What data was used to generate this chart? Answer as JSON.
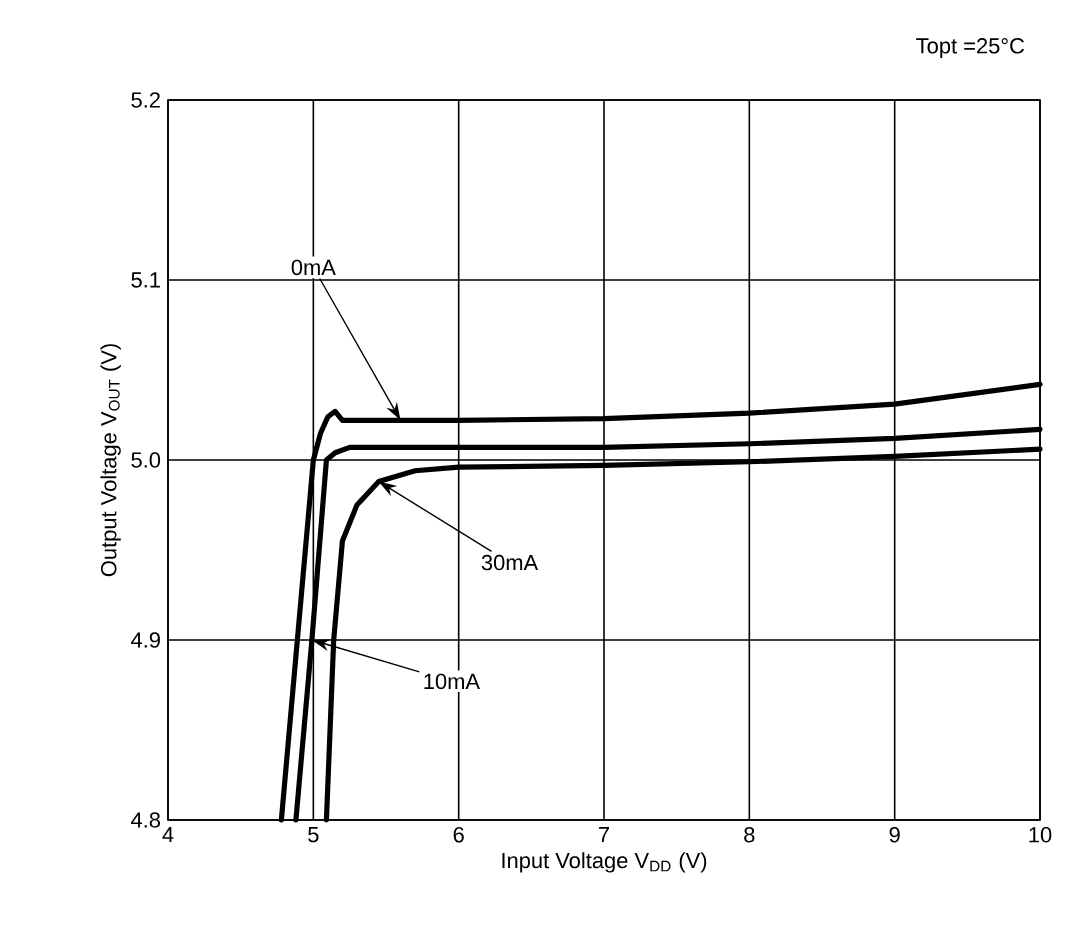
{
  "chart_data": {
    "type": "line",
    "xlabel": "Input Voltage V$_{DD}$ (V)",
    "ylabel": "Output Voltage V$_{OUT}$ (V)",
    "annotations": [
      "Topt =25°C",
      {
        "text": "0mA",
        "x": 5.6,
        "y": 5.022
      },
      {
        "text": "10mA",
        "x": 4.99,
        "y": 4.9
      },
      {
        "text": "30mA",
        "x": 5.45,
        "y": 4.988
      }
    ],
    "xlim": [
      4,
      10
    ],
    "ylim": [
      4.8,
      5.2
    ],
    "xticks": [
      4,
      5,
      6,
      7,
      8,
      9,
      10
    ],
    "yticks": [
      4.8,
      4.9,
      {
        "value": 5.0,
        "label": "5.0"
      },
      5.1,
      5.2
    ],
    "grid": true,
    "legend": false,
    "line_style": "solid",
    "marker": "none",
    "series": [
      {
        "color": "#000000",
        "x": [
          4.78,
          5.0,
          5.05,
          5.1,
          5.15,
          5.2,
          5.3,
          5.6,
          6,
          7,
          8,
          9,
          10
        ],
        "values": [
          4.8,
          5.0,
          5.015,
          5.024,
          5.027,
          5.022,
          5.022,
          5.022,
          5.022,
          5.023,
          5.026,
          5.031,
          5.042
        ]
      },
      {
        "color": "#000000",
        "x": [
          4.88,
          4.99,
          5.09,
          5.15,
          5.25,
          5.5,
          6,
          7,
          8,
          9,
          10
        ],
        "values": [
          4.8,
          4.9,
          5.0,
          5.004,
          5.007,
          5.007,
          5.007,
          5.007,
          5.009,
          5.012,
          5.017
        ]
      },
      {
        "color": "#000000",
        "x": [
          5.09,
          5.14,
          5.2,
          5.3,
          5.45,
          5.7,
          6,
          7,
          8,
          9,
          10
        ],
        "values": [
          4.8,
          4.9,
          4.955,
          4.975,
          4.988,
          4.994,
          4.996,
          4.997,
          4.999,
          5.002,
          5.006
        ]
      }
    ]
  }
}
